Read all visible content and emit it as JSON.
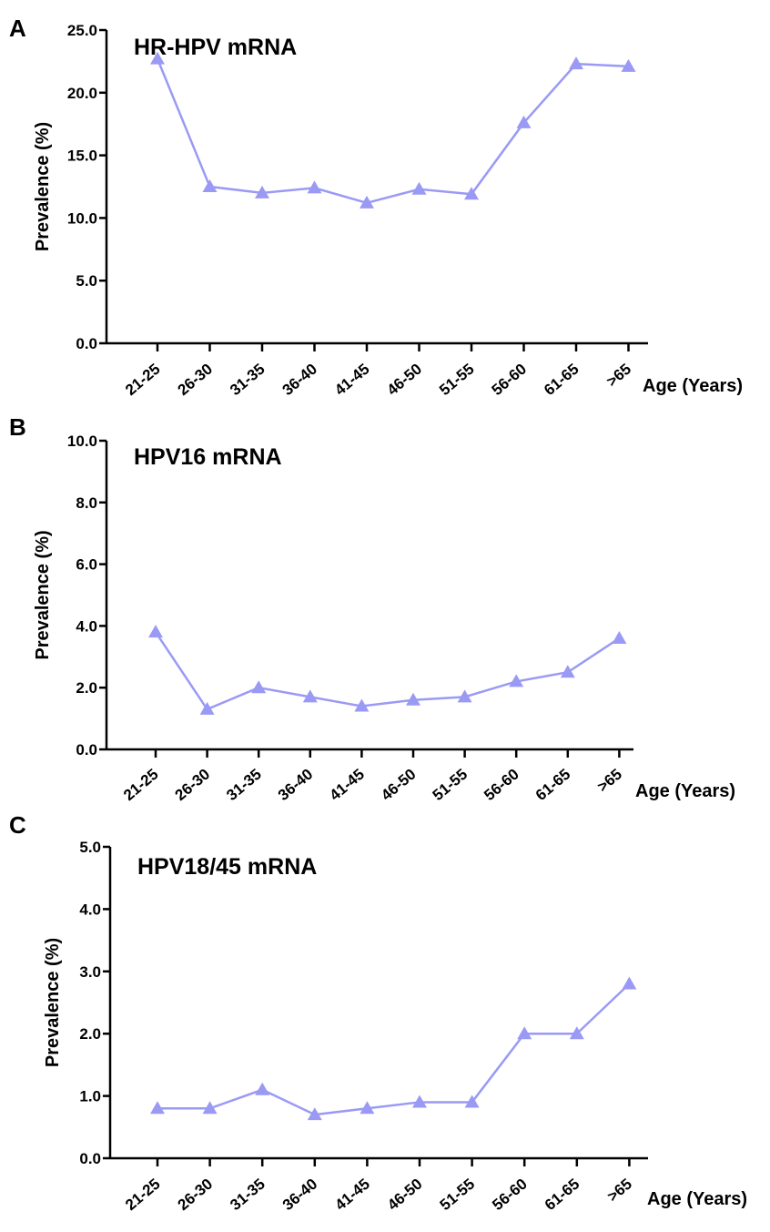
{
  "chart_data": [
    {
      "panel": "A",
      "type": "line",
      "title": "HR-HPV mRNA",
      "ylabel": "Prevalence (%)",
      "xlabel": "Age (Years)",
      "categories": [
        "21-25",
        "26-30",
        "31-35",
        "36-40",
        "41-45",
        "46-50",
        "51-55",
        "56-60",
        "61-65",
        ">65"
      ],
      "values": [
        22.7,
        12.5,
        12.0,
        12.4,
        11.2,
        12.3,
        11.9,
        17.6,
        22.3,
        22.1
      ],
      "ylim": [
        0,
        25
      ],
      "yticks": [
        "0.0",
        "5.0",
        "10.0",
        "15.0",
        "20.0",
        "25.0"
      ],
      "color": "#9a9af5"
    },
    {
      "panel": "B",
      "type": "line",
      "title": "HPV16 mRNA",
      "ylabel": "Prevalence (%)",
      "xlabel": "Age (Years)",
      "categories": [
        "21-25",
        "26-30",
        "31-35",
        "36-40",
        "41-45",
        "46-50",
        "51-55",
        "56-60",
        "61-65",
        ">65"
      ],
      "values": [
        3.8,
        1.3,
        2.0,
        1.7,
        1.4,
        1.6,
        1.7,
        2.2,
        2.5,
        3.6
      ],
      "ylim": [
        0,
        10
      ],
      "yticks": [
        "0.0",
        "2.0",
        "4.0",
        "6.0",
        "8.0",
        "10.0"
      ],
      "color": "#9a9af5"
    },
    {
      "panel": "C",
      "type": "line",
      "title": "HPV18/45 mRNA",
      "ylabel": "Prevalence (%)",
      "xlabel": "Age (Years)",
      "categories": [
        "21-25",
        "26-30",
        "31-35",
        "36-40",
        "41-45",
        "46-50",
        "51-55",
        "56-60",
        "61-65",
        ">65"
      ],
      "values": [
        0.8,
        0.8,
        1.1,
        0.7,
        0.8,
        0.9,
        0.9,
        2.0,
        2.0,
        2.8
      ],
      "ylim": [
        0,
        5
      ],
      "yticks": [
        "0.0",
        "1.0",
        "2.0",
        "3.0",
        "4.0",
        "5.0"
      ],
      "color": "#9a9af5"
    }
  ]
}
